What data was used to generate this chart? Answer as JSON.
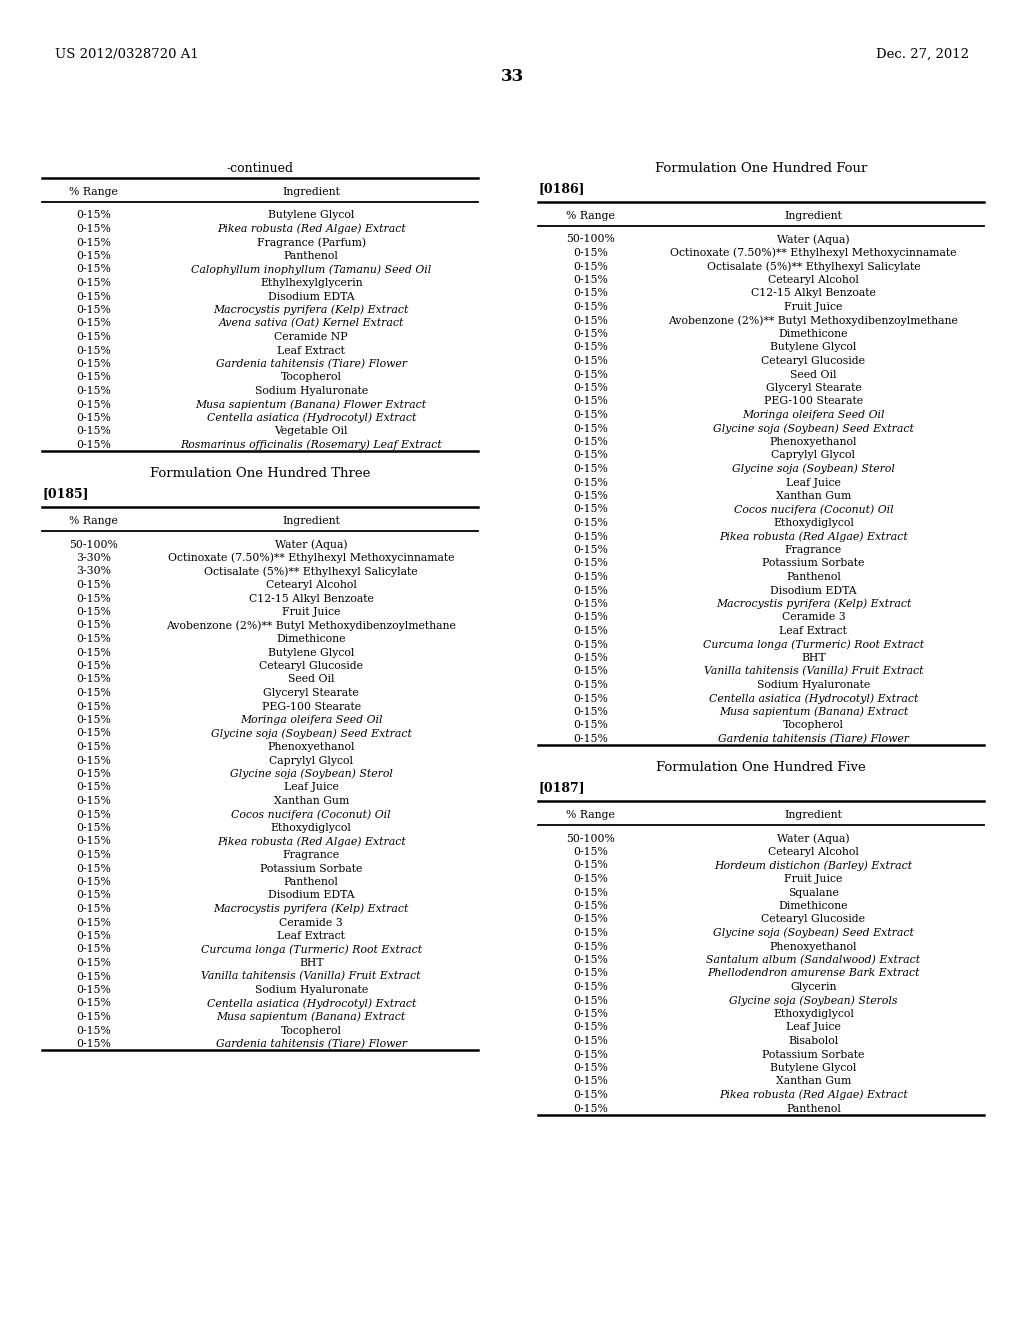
{
  "page_header_left": "US 2012/0328720 A1",
  "page_header_right": "Dec. 27, 2012",
  "page_number": "33",
  "background_color": "#ffffff",
  "text_color": "#000000",
  "left_col_continued_title": "-continued",
  "left_col_continued_data": [
    [
      "0-15%",
      "Butylene Glycol",
      ""
    ],
    [
      "0-15%",
      " robusta (Red Algae) Extract",
      "Pikea"
    ],
    [
      "0-15%",
      "Fragrance (Parfum)",
      ""
    ],
    [
      "0-15%",
      "Panthenol",
      ""
    ],
    [
      "0-15%",
      " inophyllum (Tamanu) Seed Oil",
      "Calophyllum"
    ],
    [
      "0-15%",
      "Ethylhexylglycerin",
      ""
    ],
    [
      "0-15%",
      "Disodium EDTA",
      ""
    ],
    [
      "0-15%",
      " pyrifera (Kelp) Extract",
      "Macrocystis"
    ],
    [
      "0-15%",
      " sativa (Oat) Kernel Extract",
      "Avena"
    ],
    [
      "0-15%",
      "Ceramide NP",
      ""
    ],
    [
      "0-15%",
      "Leaf Extract",
      ""
    ],
    [
      "0-15%",
      " tahitensis (Tiare) Flower",
      "Gardenia"
    ],
    [
      "0-15%",
      "Tocopherol",
      ""
    ],
    [
      "0-15%",
      "Sodium Hyaluronate",
      ""
    ],
    [
      "0-15%",
      " sapientum (Banana) Flower Extract",
      "Musa"
    ],
    [
      "0-15%",
      " asiatica (Hydrocotyl) Extract",
      "Centella"
    ],
    [
      "0-15%",
      "Vegetable Oil",
      ""
    ],
    [
      "0-15%",
      " officinalis (Rosemary) Leaf Extract",
      "Rosmarinus"
    ]
  ],
  "left_col_form103_title": "Formulation One Hundred Three",
  "left_col_form103_ref": "[0185]",
  "left_col_form103_data": [
    [
      "50-100%",
      "Water (Aqua)",
      ""
    ],
    [
      "3-30%",
      "Octinoxate (7.50%)** Ethylhexyl Methoxycinnamate",
      ""
    ],
    [
      "3-30%",
      "Octisalate (5%)** Ethylhexyl Salicylate",
      ""
    ],
    [
      "0-15%",
      "Cetearyl Alcohol",
      ""
    ],
    [
      "0-15%",
      "C12-15 Alkyl Benzoate",
      ""
    ],
    [
      "0-15%",
      "Fruit Juice",
      ""
    ],
    [
      "0-15%",
      "Avobenzone (2%)** Butyl Methoxydibenzoylmethane",
      ""
    ],
    [
      "0-15%",
      "Dimethicone",
      ""
    ],
    [
      "0-15%",
      "Butylene Glycol",
      ""
    ],
    [
      "0-15%",
      "Cetearyl Glucoside",
      ""
    ],
    [
      "0-15%",
      "Seed Oil",
      ""
    ],
    [
      "0-15%",
      "Glyceryl Stearate",
      ""
    ],
    [
      "0-15%",
      "PEG-100 Stearate",
      ""
    ],
    [
      "0-15%",
      " oleifera Seed Oil",
      "Moringa"
    ],
    [
      "0-15%",
      " soja (Soybean) Seed Extract",
      "Glycine"
    ],
    [
      "0-15%",
      "Phenoxyethanol",
      ""
    ],
    [
      "0-15%",
      "Caprylyl Glycol",
      ""
    ],
    [
      "0-15%",
      " soja (Soybean) Sterol",
      "Glycine"
    ],
    [
      "0-15%",
      "Leaf Juice",
      ""
    ],
    [
      "0-15%",
      "Xanthan Gum",
      ""
    ],
    [
      "0-15%",
      " nucifera (Coconut) Oil",
      "Cocos"
    ],
    [
      "0-15%",
      "Ethoxydiglycol",
      ""
    ],
    [
      "0-15%",
      " robusta (Red Algae) Extract",
      "Pikea"
    ],
    [
      "0-15%",
      "Fragrance",
      ""
    ],
    [
      "0-15%",
      "Potassium Sorbate",
      ""
    ],
    [
      "0-15%",
      "Panthenol",
      ""
    ],
    [
      "0-15%",
      "Disodium EDTA",
      ""
    ],
    [
      "0-15%",
      " pyrifera (Kelp) Extract",
      "Macrocystis"
    ],
    [
      "0-15%",
      "Ceramide 3",
      ""
    ],
    [
      "0-15%",
      "Leaf Extract",
      ""
    ],
    [
      "0-15%",
      " longa (Turmeric) Root Extract",
      "Curcuma"
    ],
    [
      "0-15%",
      "BHT",
      ""
    ],
    [
      "0-15%",
      " tahitensis (Vanilla) Fruit Extract",
      "Vanilla"
    ],
    [
      "0-15%",
      "Sodium Hyaluronate",
      ""
    ],
    [
      "0-15%",
      " asiatica (Hydrocotyl) Extract",
      "Centella"
    ],
    [
      "0-15%",
      " sapientum (Banana) Extract",
      "Musa"
    ],
    [
      "0-15%",
      "Tocopherol",
      ""
    ],
    [
      "0-15%",
      " tahitensis (Tiare) Flower",
      "Gardenia"
    ]
  ],
  "right_col_form104_title": "Formulation One Hundred Four",
  "right_col_form104_ref": "[0186]",
  "right_col_form104_data": [
    [
      "50-100%",
      "Water (Aqua)",
      ""
    ],
    [
      "0-15%",
      "Octinoxate (7.50%)** Ethylhexyl Methoxycinnamate",
      ""
    ],
    [
      "0-15%",
      "Octisalate (5%)** Ethylhexyl Salicylate",
      ""
    ],
    [
      "0-15%",
      "Cetearyl Alcohol",
      ""
    ],
    [
      "0-15%",
      "C12-15 Alkyl Benzoate",
      ""
    ],
    [
      "0-15%",
      "Fruit Juice",
      ""
    ],
    [
      "0-15%",
      "Avobenzone (2%)** Butyl Methoxydibenzoylmethane",
      ""
    ],
    [
      "0-15%",
      "Dimethicone",
      ""
    ],
    [
      "0-15%",
      "Butylene Glycol",
      ""
    ],
    [
      "0-15%",
      "Cetearyl Glucoside",
      ""
    ],
    [
      "0-15%",
      "Seed Oil",
      ""
    ],
    [
      "0-15%",
      "Glyceryl Stearate",
      ""
    ],
    [
      "0-15%",
      "PEG-100 Stearate",
      ""
    ],
    [
      "0-15%",
      " oleifera Seed Oil",
      "Moringa"
    ],
    [
      "0-15%",
      " soja (Soybean) Seed Extract",
      "Glycine"
    ],
    [
      "0-15%",
      "Phenoxyethanol",
      ""
    ],
    [
      "0-15%",
      "Caprylyl Glycol",
      ""
    ],
    [
      "0-15%",
      " soja (Soybean) Sterol",
      "Glycine"
    ],
    [
      "0-15%",
      "Leaf Juice",
      ""
    ],
    [
      "0-15%",
      "Xanthan Gum",
      ""
    ],
    [
      "0-15%",
      " nucifera (Coconut) Oil",
      "Cocos"
    ],
    [
      "0-15%",
      "Ethoxydiglycol",
      ""
    ],
    [
      "0-15%",
      " robusta (Red Algae) Extract",
      "Pikea"
    ],
    [
      "0-15%",
      "Fragrance",
      ""
    ],
    [
      "0-15%",
      "Potassium Sorbate",
      ""
    ],
    [
      "0-15%",
      "Panthenol",
      ""
    ],
    [
      "0-15%",
      "Disodium EDTA",
      ""
    ],
    [
      "0-15%",
      " pyrifera (Kelp) Extract",
      "Macrocystis"
    ],
    [
      "0-15%",
      "Ceramide 3",
      ""
    ],
    [
      "0-15%",
      "Leaf Extract",
      ""
    ],
    [
      "0-15%",
      " longa (Turmeric) Root Extract",
      "Curcuma"
    ],
    [
      "0-15%",
      "BHT",
      ""
    ],
    [
      "0-15%",
      " tahitensis (Vanilla) Fruit Extract",
      "Vanilla"
    ],
    [
      "0-15%",
      "Sodium Hyaluronate",
      ""
    ],
    [
      "0-15%",
      " asiatica (Hydrocotyl) Extract",
      "Centella"
    ],
    [
      "0-15%",
      " sapientum (Banana) Extract",
      "Musa"
    ],
    [
      "0-15%",
      "Tocopherol",
      ""
    ],
    [
      "0-15%",
      " tahitensis (Tiare) Flower",
      "Gardenia"
    ]
  ],
  "right_col_form105_title": "Formulation One Hundred Five",
  "right_col_form105_ref": "[0187]",
  "right_col_form105_data": [
    [
      "50-100%",
      "Water (Aqua)",
      ""
    ],
    [
      "0-15%",
      "Cetearyl Alcohol",
      ""
    ],
    [
      "0-15%",
      " distichon (Barley) Extract",
      "Hordeum"
    ],
    [
      "0-15%",
      "Fruit Juice",
      ""
    ],
    [
      "0-15%",
      "Squalane",
      ""
    ],
    [
      "0-15%",
      "Dimethicone",
      ""
    ],
    [
      "0-15%",
      "Cetearyl Glucoside",
      ""
    ],
    [
      "0-15%",
      " soja (Soybean) Seed Extract",
      "Glycine"
    ],
    [
      "0-15%",
      "Phenoxyethanol",
      ""
    ],
    [
      "0-15%",
      " album (Sandalwood) Extract",
      "Santalum"
    ],
    [
      "0-15%",
      " amurense Bark Extract",
      "Phellodendron"
    ],
    [
      "0-15%",
      "Glycerin",
      ""
    ],
    [
      "0-15%",
      " soja (Soybean) Sterols",
      "Glycine"
    ],
    [
      "0-15%",
      "Ethoxydiglycol",
      ""
    ],
    [
      "0-15%",
      "Leaf Juice",
      ""
    ],
    [
      "0-15%",
      "Bisabolol",
      ""
    ],
    [
      "0-15%",
      "Potassium Sorbate",
      ""
    ],
    [
      "0-15%",
      "Butylene Glycol",
      ""
    ],
    [
      "0-15%",
      "Xanthan Gum",
      ""
    ],
    [
      "0-15%",
      " robusta (Red Algae) Extract",
      "Pikea"
    ],
    [
      "0-15%",
      "Panthenol",
      ""
    ]
  ]
}
